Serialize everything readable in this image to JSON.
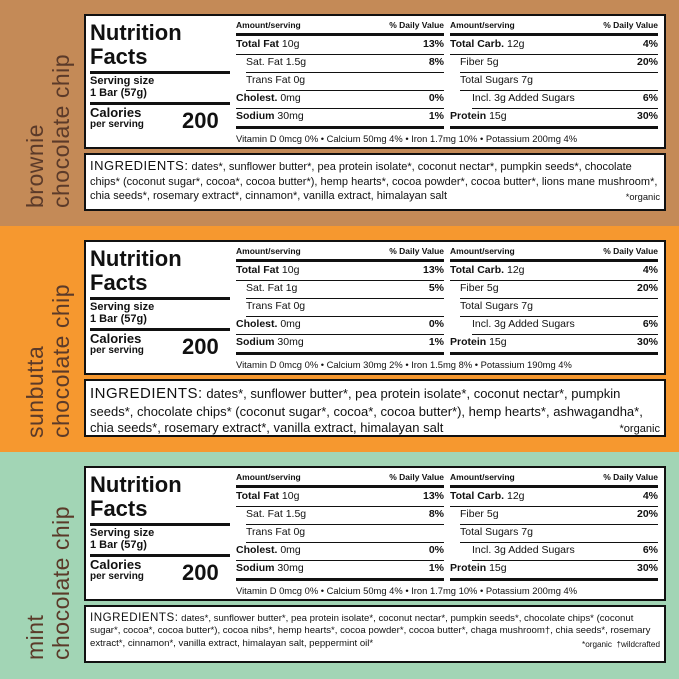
{
  "panels": [
    {
      "flavor": [
        "brownie",
        "chocolate chip"
      ],
      "facts": {
        "title": [
          "Nutrition",
          "Facts"
        ],
        "serving_label": "Serving size",
        "serving": "1 Bar (57g)",
        "calories_label": "Calories",
        "per_serving": "per serving",
        "calories": "200",
        "columns": [
          {
            "header": [
              "Amount/serving",
              "% Daily Value"
            ],
            "rows": [
              {
                "name": "Total Fat",
                "amount": "10g",
                "dv": "13%"
              },
              {
                "name": "Sat. Fat",
                "amount": "1.5g",
                "dv": "8%"
              },
              {
                "name": "Trans Fat",
                "amount": "0g"
              },
              {
                "name": "Cholest.",
                "amount": "0mg",
                "dv": "0%"
              },
              {
                "name": "Sodium",
                "amount": "30mg",
                "dv": "1%"
              }
            ]
          },
          {
            "header": [
              "Amount/serving",
              "% Daily Value"
            ],
            "rows": [
              {
                "name": "Total Carb.",
                "amount": "12g",
                "dv": "4%"
              },
              {
                "name": "Fiber",
                "amount": "5g",
                "dv": "20%"
              },
              {
                "name": "Total Sugars",
                "amount": "7g"
              },
              {
                "name": "Incl. 3g Added Sugars",
                "dv": "6%"
              },
              {
                "name": "Protein",
                "amount": "15g",
                "dv": "30%"
              }
            ]
          }
        ],
        "footer": "Vitamin D 0mcg 0% • Calcium 50mg 4% • Iron 1.7mg 10% • Potassium 200mg 4%"
      },
      "ingredients": {
        "label": "INGREDIENTS:",
        "text": "dates*, sunflower butter*, pea protein isolate*, coconut nectar*, pumpkin seeds*, chocolate chips* (coconut sugar*, cocoa*, cocoa butter*), hemp hearts*, cocoa powder*, cocoa butter*, lions mane mushroom*, chia seeds*, rosemary extract*, cinnamon*, vanilla extract, himalayan salt",
        "note": "*organic"
      }
    },
    {
      "flavor": [
        "sunbutta",
        "chocolate chip"
      ],
      "facts": {
        "title": [
          "Nutrition",
          "Facts"
        ],
        "serving_label": "Serving size",
        "serving": "1 Bar (57g)",
        "calories_label": "Calories",
        "per_serving": "per serving",
        "calories": "200",
        "columns": [
          {
            "header": [
              "Amount/serving",
              "% Daily Value"
            ],
            "rows": [
              {
                "name": "Total Fat",
                "amount": "10g",
                "dv": "13%"
              },
              {
                "name": "Sat. Fat",
                "amount": "1g",
                "dv": "5%"
              },
              {
                "name": "Trans Fat",
                "amount": "0g"
              },
              {
                "name": "Cholest.",
                "amount": "0mg",
                "dv": "0%"
              },
              {
                "name": "Sodium",
                "amount": "30mg",
                "dv": "1%"
              }
            ]
          },
          {
            "header": [
              "Amount/serving",
              "% Daily Value"
            ],
            "rows": [
              {
                "name": "Total Carb.",
                "amount": "12g",
                "dv": "4%"
              },
              {
                "name": "Fiber",
                "amount": "5g",
                "dv": "20%"
              },
              {
                "name": "Total Sugars",
                "amount": "7g"
              },
              {
                "name": "Incl. 3g Added Sugars",
                "dv": "6%"
              },
              {
                "name": "Protein",
                "amount": "15g",
                "dv": "30%"
              }
            ]
          }
        ],
        "footer": "Vitamin D 0mcg 0% • Calcium 30mg 2% • Iron 1.5mg 8% • Potassium 190mg 4%"
      },
      "ingredients": {
        "label": "INGREDIENTS:",
        "text": "dates*, sunflower butter*, pea protein isolate*, coconut nectar*, pumpkin seeds*, chocolate chips* (coconut sugar*, cocoa*, cocoa butter*), hemp hearts*, ashwagandha*, chia seeds*, rosemary extract*, vanilla extract, himalayan salt",
        "note": "*organic"
      }
    },
    {
      "flavor": [
        "mint",
        "chocolate chip"
      ],
      "facts": {
        "title": [
          "Nutrition",
          "Facts"
        ],
        "serving_label": "Serving size",
        "serving": "1 Bar (57g)",
        "calories_label": "Calories",
        "per_serving": "per serving",
        "calories": "200",
        "columns": [
          {
            "header": [
              "Amount/serving",
              "% Daily Value"
            ],
            "rows": [
              {
                "name": "Total Fat",
                "amount": "10g",
                "dv": "13%"
              },
              {
                "name": "Sat. Fat",
                "amount": "1.5g",
                "dv": "8%"
              },
              {
                "name": "Trans Fat",
                "amount": "0g"
              },
              {
                "name": "Cholest.",
                "amount": "0mg",
                "dv": "0%"
              },
              {
                "name": "Sodium",
                "amount": "30mg",
                "dv": "1%"
              }
            ]
          },
          {
            "header": [
              "Amount/serving",
              "% Daily Value"
            ],
            "rows": [
              {
                "name": "Total Carb.",
                "amount": "12g",
                "dv": "4%"
              },
              {
                "name": "Fiber",
                "amount": "5g",
                "dv": "20%"
              },
              {
                "name": "Total Sugars",
                "amount": "7g"
              },
              {
                "name": "Incl. 3g Added Sugars",
                "dv": "6%"
              },
              {
                "name": "Protein",
                "amount": "15g",
                "dv": "30%"
              }
            ]
          }
        ],
        "footer": "Vitamin D 0mcg 0% • Calcium 50mg 4% • Iron 1.7mg 10% • Potassium 200mg 4%"
      },
      "ingredients": {
        "label": "INGREDIENTS:",
        "text": "dates*, sunflower butter*, pea protein isolate*, coconut nectar*, pumpkin seeds*, chocolate chips* (coconut sugar*, cocoa*, cocoa butter*), cocoa nibs*, hemp hearts*, cocoa powder*, cocoa butter*, chaga mushroom†, chia seeds*, rosemary extract*, cinnamon*, vanilla extract, himalayan salt, peppermint oil*",
        "note": "*organic  †wildcrafted"
      }
    }
  ]
}
